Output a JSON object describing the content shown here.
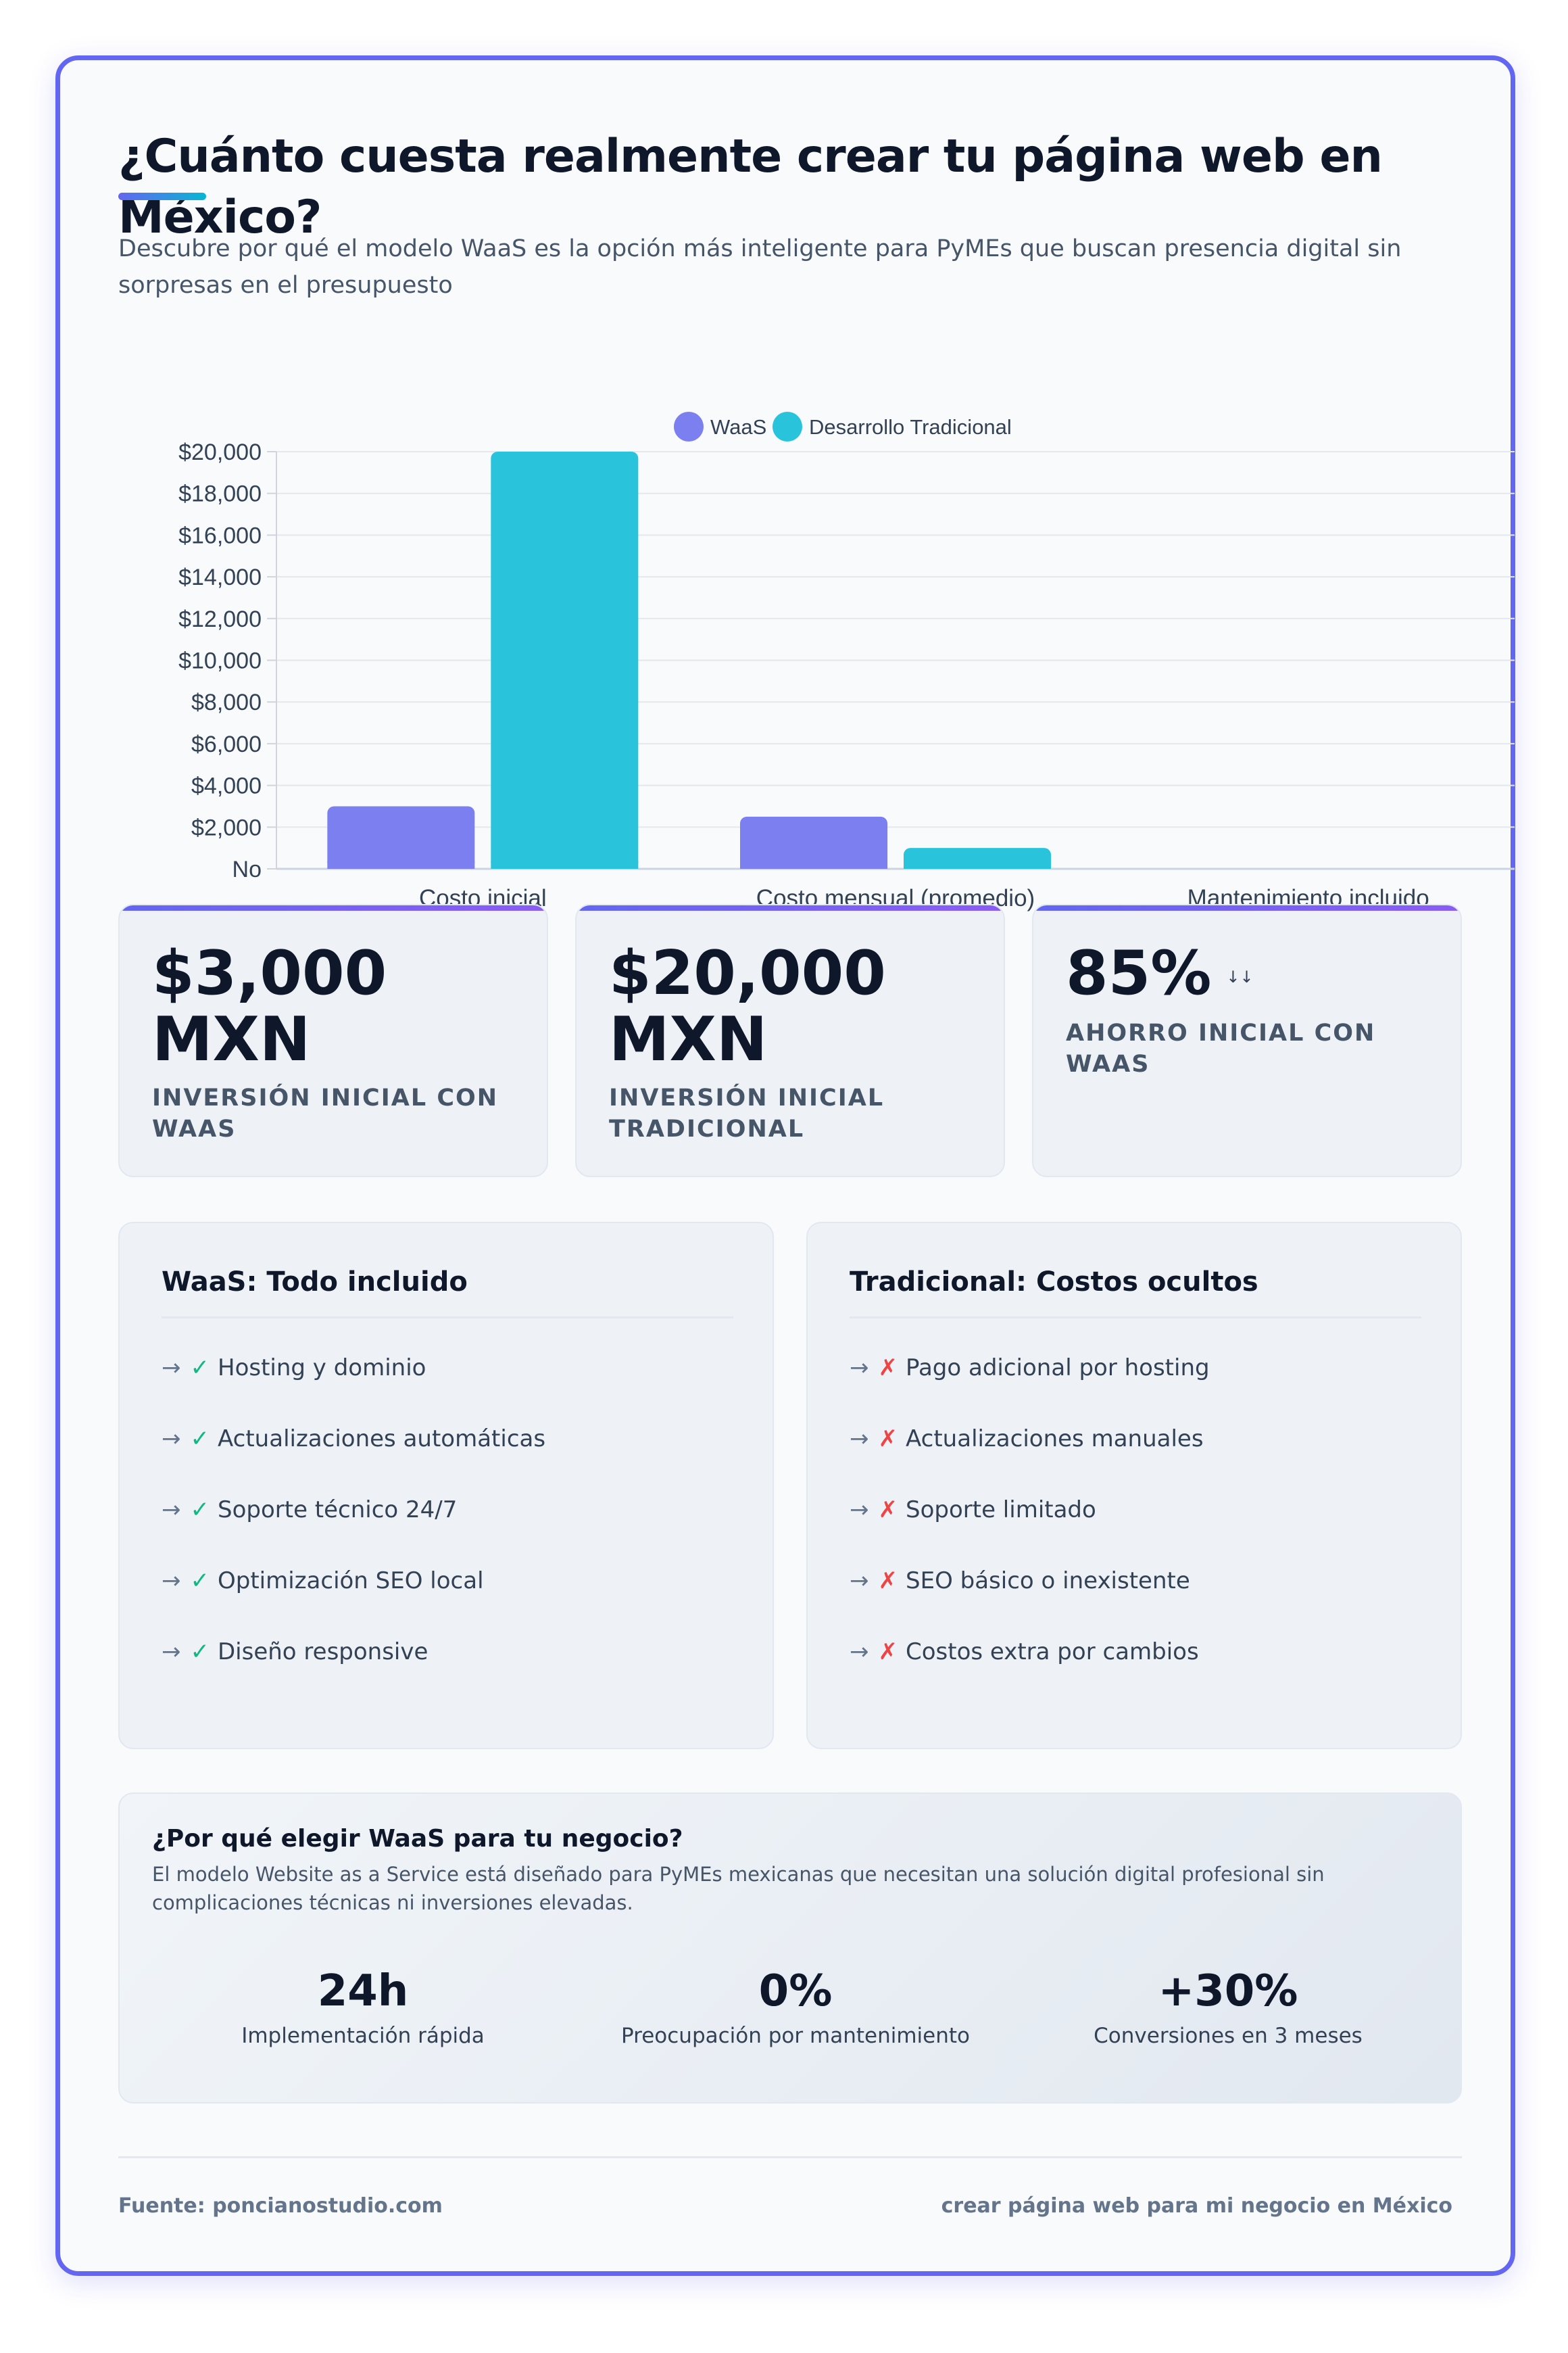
{
  "header": {
    "title": "¿Cuánto cuesta realmente crear tu página web en México?",
    "subtitle": "Descubre por qué el modelo WaaS es la opción más inteligente para PyMEs que buscan presencia digital sin sorpresas en el presupuesto"
  },
  "chart_data": {
    "type": "bar",
    "categories": [
      "Costo inicial",
      "Costo mensual (promedio)",
      "Mantenimiento incluido"
    ],
    "series": [
      {
        "name": "WaaS",
        "color": "#7c7ff0",
        "values": [
          3000,
          2500,
          0
        ]
      },
      {
        "name": "Desarrollo Tradicional",
        "color": "#29c4dc",
        "values": [
          20000,
          1000,
          0
        ]
      }
    ],
    "y_ticks": [
      "No",
      "$2,000",
      "$4,000",
      "$6,000",
      "$8,000",
      "$10,000",
      "$12,000",
      "$14,000",
      "$16,000",
      "$18,000",
      "$20,000"
    ],
    "ylim": [
      0,
      20000
    ],
    "grid": true,
    "legend": "top-center"
  },
  "stats": [
    {
      "value": "$3,000 MXN",
      "label": "Inversión inicial con WaaS"
    },
    {
      "value": "$20,000 MXN",
      "label": "Inversión inicial tradicional"
    },
    {
      "value": "85%",
      "arrow": "↓↓",
      "label": "Ahorro inicial con WaaS"
    }
  ],
  "waas_list": {
    "title": "WaaS: Todo incluido",
    "arrow": "→",
    "mark": "✓",
    "items": [
      "Hosting y dominio",
      "Actualizaciones automáticas",
      "Soporte técnico 24/7",
      "Optimización SEO local",
      "Diseño responsive"
    ]
  },
  "traditional_list": {
    "title": "Tradicional: Costos ocultos",
    "arrow": "→",
    "mark": "✗",
    "items": [
      "Pago adicional por hosting",
      "Actualizaciones manuales",
      "Soporte limitado",
      "SEO básico o inexistente",
      "Costos extra por cambios"
    ]
  },
  "why": {
    "title": "¿Por qué elegir WaaS para tu negocio?",
    "text": "El modelo Website as a Service está diseñado para PyMEs mexicanas que necesitan una solución digital profesional sin complicaciones técnicas ni inversiones elevadas.",
    "metrics": [
      {
        "value": "24h",
        "label": "Implementación rápida"
      },
      {
        "value": "0%",
        "label": "Preocupación por mantenimiento"
      },
      {
        "value": "+30%",
        "label": "Conversiones en 3 meses"
      }
    ]
  },
  "footer": {
    "source": "Fuente: poncianostudio.com",
    "keyword": "crear página web para mi negocio en México"
  }
}
